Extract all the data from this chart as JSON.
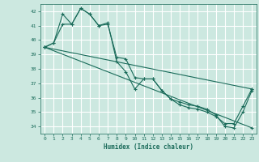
{
  "xlabel": "Humidex (Indice chaleur)",
  "bg_color": "#cce8e0",
  "line_color": "#1a6b5a",
  "grid_color": "#ffffff",
  "ylim": [
    33.5,
    42.5
  ],
  "xlim": [
    -0.5,
    23.5
  ],
  "yticks": [
    34,
    35,
    36,
    37,
    38,
    39,
    40,
    41,
    42
  ],
  "xticks": [
    0,
    1,
    2,
    3,
    4,
    5,
    6,
    7,
    8,
    9,
    10,
    11,
    12,
    13,
    14,
    15,
    16,
    17,
    18,
    19,
    20,
    21,
    22,
    23
  ],
  "series1_x": [
    0,
    1,
    2,
    3,
    4,
    5,
    6,
    7,
    8,
    9,
    10,
    11,
    12,
    13,
    14,
    15,
    16,
    17,
    18,
    19,
    20,
    21,
    22,
    23
  ],
  "series1_y": [
    39.5,
    39.8,
    41.8,
    41.1,
    42.2,
    41.8,
    41.0,
    41.2,
    38.5,
    37.8,
    36.6,
    37.3,
    37.3,
    36.5,
    35.9,
    35.7,
    35.5,
    35.4,
    35.2,
    34.8,
    34.0,
    33.9,
    35.0,
    36.5
  ],
  "series2_x": [
    0,
    1,
    2,
    3,
    4,
    5,
    6,
    7,
    8,
    9,
    10,
    11,
    12,
    13,
    14,
    15,
    16,
    17,
    18,
    19,
    20,
    21,
    22,
    23
  ],
  "series2_y": [
    39.5,
    39.8,
    41.1,
    41.1,
    42.2,
    41.8,
    41.0,
    41.1,
    38.8,
    38.7,
    37.4,
    37.3,
    37.3,
    36.5,
    35.9,
    35.5,
    35.3,
    35.2,
    35.0,
    34.7,
    34.2,
    34.2,
    35.4,
    36.6
  ],
  "series3_x": [
    0,
    23
  ],
  "series3_y": [
    39.5,
    36.6
  ],
  "series4_x": [
    0,
    23
  ],
  "series4_y": [
    39.5,
    33.9
  ]
}
